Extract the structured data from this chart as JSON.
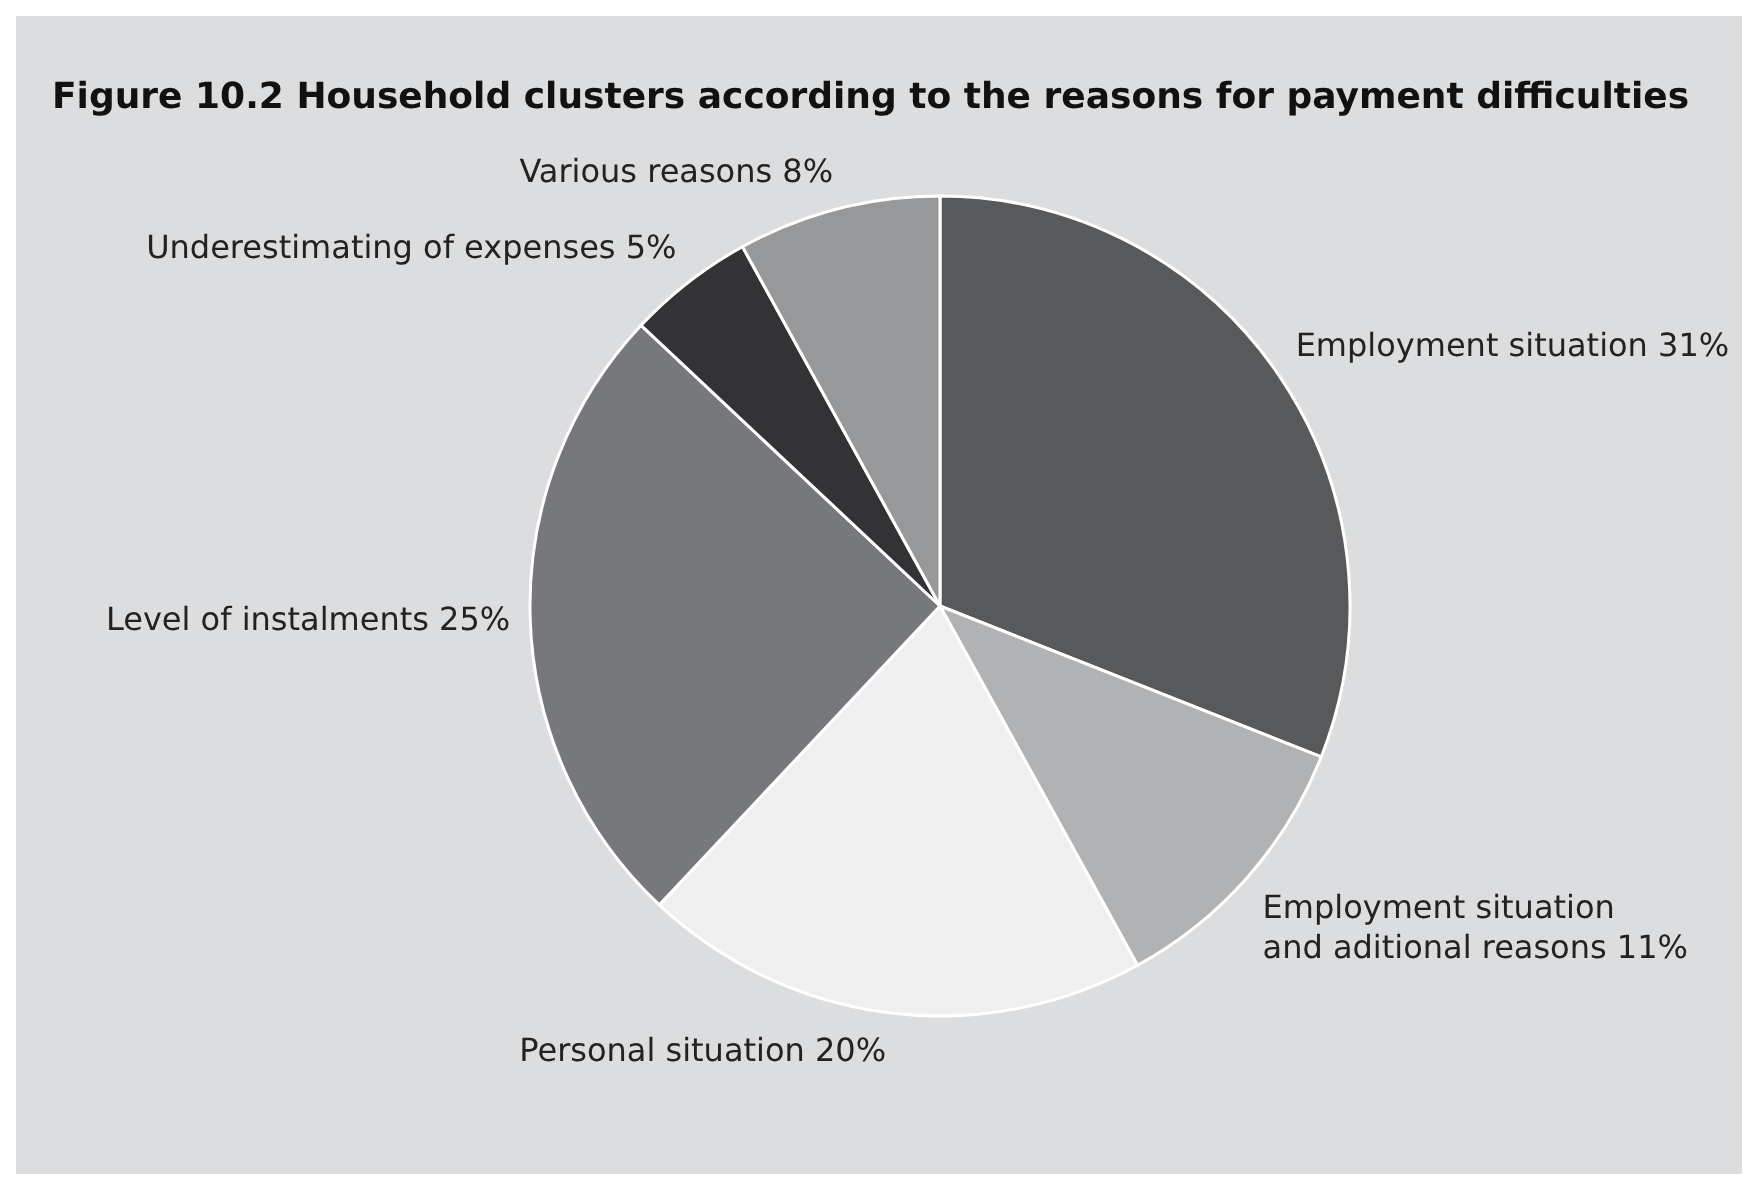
{
  "chart_data": {
    "type": "pie",
    "title": "Figure 10.2  Household clusters according to the reasons for payment difficulties",
    "categories": [
      "Employment situation",
      "Employment situation and aditional reasons",
      "Personal situation",
      "Level of instalments",
      "Underestimating of expenses",
      "Various reasons"
    ],
    "values": [
      31,
      11,
      20,
      25,
      5,
      8
    ],
    "value_labels": [
      "31%",
      "11%",
      "20%",
      "25%",
      "5%",
      "8%"
    ],
    "colors": [
      "#58595b",
      "#b1b2b4",
      "#efefef",
      "#77787b",
      "#333335",
      "#97989a"
    ],
    "legend": false
  }
}
